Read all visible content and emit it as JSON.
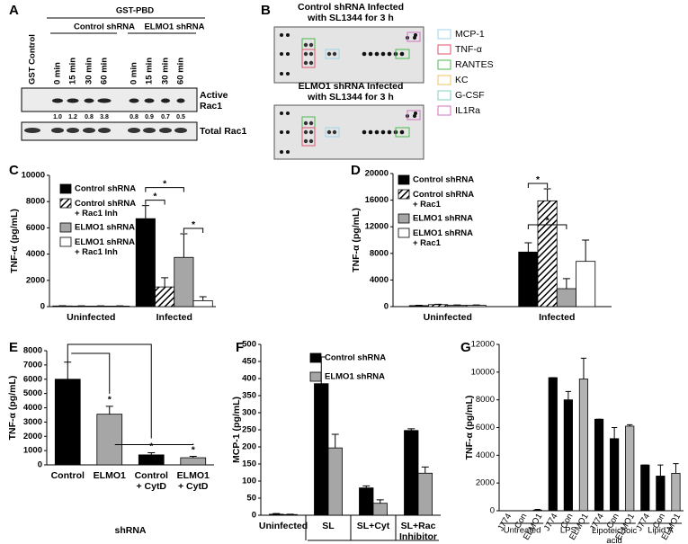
{
  "panel_a": {
    "label": "A",
    "header": "GST-PBD",
    "lanes": [
      "GST Control",
      "0 min",
      "15 min",
      "30 min",
      "60 min",
      "0 min",
      "15 min",
      "30 min",
      "60 min"
    ],
    "groups": [
      "Control shRNA",
      "ELMO1 shRNA"
    ],
    "rows": [
      "Active\nRac1",
      "Total Rac1"
    ],
    "ratios": [
      "1.0",
      "1.2",
      "0.8",
      "3.8",
      "0.8",
      "0.9",
      "0.7",
      "0.5"
    ]
  },
  "panel_b": {
    "label": "B",
    "blots": [
      "Control shRNA Infected\nwith SL1344 for 3 h",
      "ELMO1 shRNA Infected\nwith SL1344 for 3 h"
    ],
    "legend": [
      {
        "name": "MCP-1",
        "color": "#9fd3ea"
      },
      {
        "name": "TNF-α",
        "color": "#e0526b"
      },
      {
        "name": "RANTES",
        "color": "#4cb84c"
      },
      {
        "name": "KC",
        "color": "#f0c060"
      },
      {
        "name": "G-CSF",
        "color": "#7fcfc0"
      },
      {
        "name": "IL1Ra",
        "color": "#d070c0"
      }
    ]
  },
  "chart_data": [
    {
      "type": "bar",
      "panel": "C",
      "y_label": "TNF-α (pg/mL)",
      "categories": [
        "Uninfected",
        "Infected"
      ],
      "series": [
        {
          "name": "Control shRNA",
          "color": "#000000",
          "values": [
            50,
            6700
          ],
          "errors": [
            20,
            1000
          ]
        },
        {
          "name": "Control shRNA\n+ Rac1 Inh",
          "color": "#ffffff",
          "hatch": true,
          "values": [
            40,
            1500
          ],
          "errors": [
            20,
            700
          ]
        },
        {
          "name": "ELMO1 shRNA",
          "color": "#a6a6a6",
          "values": [
            40,
            3750
          ],
          "errors": [
            20,
            1800
          ]
        },
        {
          "name": "ELMO1 shRNA\n+ Rac1 Inh",
          "color": "#ffffff",
          "values": [
            40,
            450
          ],
          "errors": [
            20,
            300
          ]
        }
      ],
      "ylim": [
        0,
        10000
      ],
      "yticks": [
        0,
        2000,
        4000,
        6000,
        8000,
        10000
      ],
      "annotations": [
        "*",
        "*",
        "*"
      ]
    },
    {
      "type": "bar",
      "panel": "D",
      "y_label": "TNF-α (pg/mL)",
      "categories": [
        "Uninfected",
        "Infected"
      ],
      "series": [
        {
          "name": "Control shRNA",
          "color": "#000000",
          "values": [
            150,
            8200
          ],
          "errors": [
            50,
            1400
          ]
        },
        {
          "name": "Control shRNA\n+ Rac1",
          "color": "#ffffff",
          "hatch": true,
          "values": [
            300,
            15900
          ],
          "errors": [
            50,
            1800
          ]
        },
        {
          "name": "ELMO1 shRNA",
          "color": "#a6a6a6",
          "values": [
            200,
            2700
          ],
          "errors": [
            50,
            1500
          ]
        },
        {
          "name": "ELMO1 shRNA\n+ Rac1",
          "color": "#ffffff",
          "values": [
            200,
            6800
          ],
          "errors": [
            50,
            3200
          ]
        }
      ],
      "ylim": [
        0,
        20000
      ],
      "yticks": [
        0,
        4000,
        8000,
        12000,
        16000,
        20000
      ],
      "annotations": [
        "*",
        "*"
      ]
    },
    {
      "type": "bar",
      "panel": "E",
      "y_label": "TNF-α (pg/mL)",
      "x_label": "shRNA",
      "categories": [
        "Control",
        "ELMO1",
        "Control\n+ CytD",
        "ELMO1\n+ CytD"
      ],
      "values": [
        6000,
        3550,
        700,
        500
      ],
      "errors": [
        1200,
        550,
        150,
        100
      ],
      "colors": [
        "#000000",
        "#a6a6a6",
        "#000000",
        "#a6a6a6"
      ],
      "ylim": [
        0,
        8000
      ],
      "yticks": [
        0,
        1000,
        2000,
        3000,
        4000,
        5000,
        6000,
        7000,
        8000
      ],
      "annotations": [
        "*",
        "*",
        "*"
      ]
    },
    {
      "type": "bar",
      "panel": "F",
      "y_label": "MCP-1 (pg/mL)",
      "group_label": "Infected",
      "categories": [
        "Uninfected",
        "SL",
        "SL+Cyt",
        "SL+Rac\nInhibitor"
      ],
      "series": [
        {
          "name": "Control shRNA",
          "color": "#000000",
          "values": [
            3,
            385,
            80,
            248
          ],
          "errors": [
            2,
            78,
            6,
            5
          ]
        },
        {
          "name": "ELMO1 shRNA",
          "color": "#a6a6a6",
          "values": [
            2,
            197,
            35,
            123
          ],
          "errors": [
            1,
            40,
            10,
            18
          ]
        }
      ],
      "ylim": [
        0,
        500
      ],
      "yticks": [
        0,
        50,
        100,
        150,
        200,
        250,
        300,
        350,
        400,
        450,
        500
      ]
    },
    {
      "type": "bar",
      "panel": "G",
      "y_label": "TNF-α (pg/mL)",
      "categories": [
        "J774",
        "Con",
        "ELMO1",
        "J774",
        "Con",
        "ELMO1",
        "J774",
        "Con",
        "ELMO1",
        "J774",
        "Con",
        "ELMO1"
      ],
      "groups": [
        "Untreated",
        "LPS",
        "Lipoteichoic\nacid",
        "Lipid A"
      ],
      "values": [
        0,
        0,
        50,
        9600,
        8000,
        9500,
        6600,
        5200,
        6100,
        3300,
        2500,
        2700
      ],
      "errors": [
        0,
        0,
        50,
        0,
        600,
        1500,
        0,
        800,
        100,
        0,
        800,
        700
      ],
      "colors": [
        "#000000",
        "#000000",
        "#b3b3b3",
        "#000000",
        "#000000",
        "#b3b3b3",
        "#000000",
        "#000000",
        "#b3b3b3",
        "#000000",
        "#000000",
        "#b3b3b3"
      ],
      "ylim": [
        0,
        12000
      ],
      "yticks": [
        0,
        2000,
        4000,
        6000,
        8000,
        10000,
        12000
      ]
    }
  ]
}
